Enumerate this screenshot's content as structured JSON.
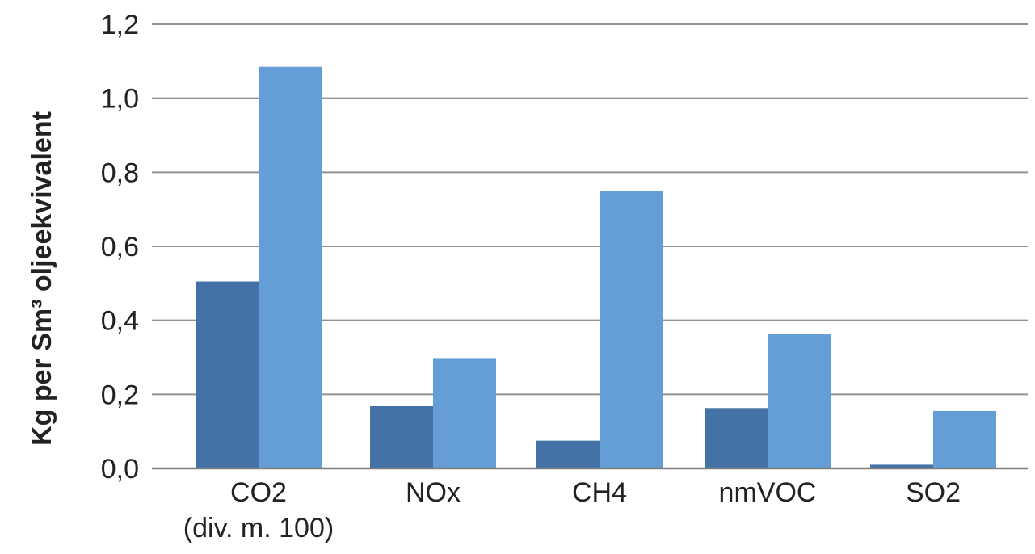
{
  "chart_data": {
    "type": "bar",
    "title": "",
    "xlabel": "",
    "ylabel": "Kg per Sm³ oljeekvivalent",
    "ylim": [
      0,
      1.2
    ],
    "ytick_values": [
      0,
      0.2,
      0.4,
      0.6,
      0.8,
      1.0,
      1.2
    ],
    "ytick_labels": [
      "0,0",
      "0,2",
      "0,4",
      "0,6",
      "0,8",
      "1,0",
      "1,2"
    ],
    "grid": true,
    "legend": "none",
    "categories": [
      [
        "CO2",
        "(div. m. 100)"
      ],
      [
        "NOx"
      ],
      [
        "CH4"
      ],
      [
        "nmVOC"
      ],
      [
        "SO2"
      ]
    ],
    "series": [
      {
        "color": "#4472a6",
        "values": [
          0.505,
          0.168,
          0.075,
          0.163,
          0.01
        ]
      },
      {
        "color": "#659ed6",
        "values": [
          1.085,
          0.298,
          0.75,
          0.363,
          0.155
        ]
      }
    ],
    "colors": {
      "grid": "#909090",
      "axis": "#7f7f7f",
      "text": "#222222"
    }
  }
}
